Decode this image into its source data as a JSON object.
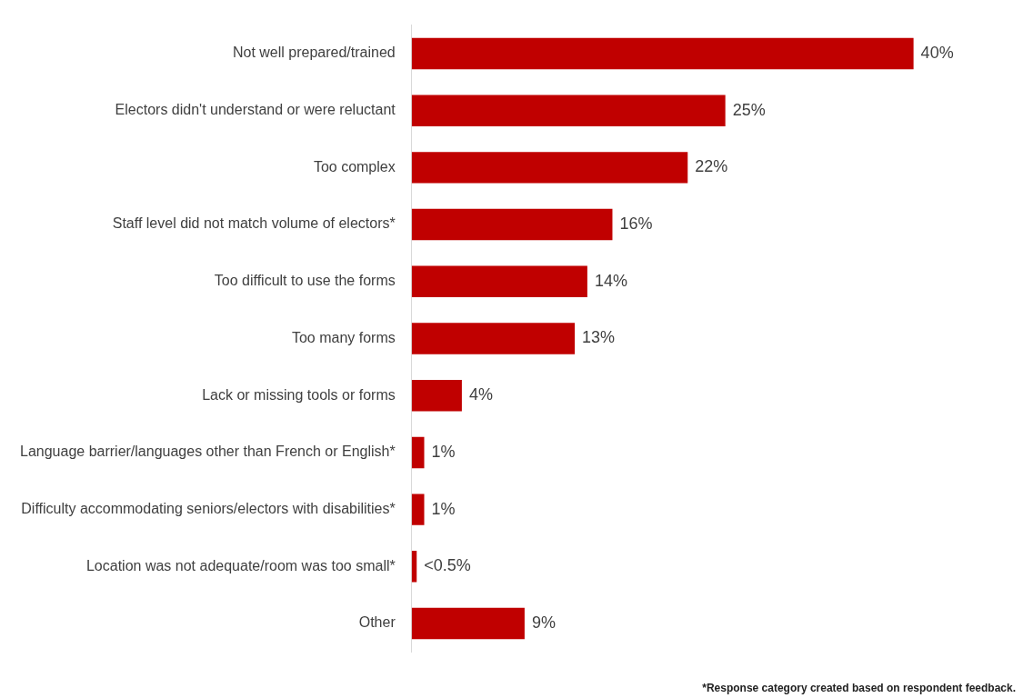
{
  "chart_data": {
    "type": "bar",
    "orientation": "horizontal",
    "categories": [
      "Not well prepared/trained",
      "Electors didn't understand or were reluctant",
      "Too complex",
      "Staff level did not match volume of electors*",
      "Too difficult to use the forms",
      "Too many forms",
      "Lack or missing tools or forms",
      "Language barrier/languages other than French or English*",
      "Difficulty accommodating seniors/electors with disabilities*",
      "Location was not adequate/room was too small*",
      "Other"
    ],
    "values": [
      40,
      25,
      22,
      16,
      14,
      13,
      4,
      1,
      1,
      0.4,
      9
    ],
    "value_labels": [
      "40%",
      "25%",
      "22%",
      "16%",
      "14%",
      "13%",
      "4%",
      "1%",
      "1%",
      "<0.5%",
      "9%"
    ],
    "color": "#c00000",
    "annotations": [
      "*Response category created based on respondent feedback."
    ]
  }
}
